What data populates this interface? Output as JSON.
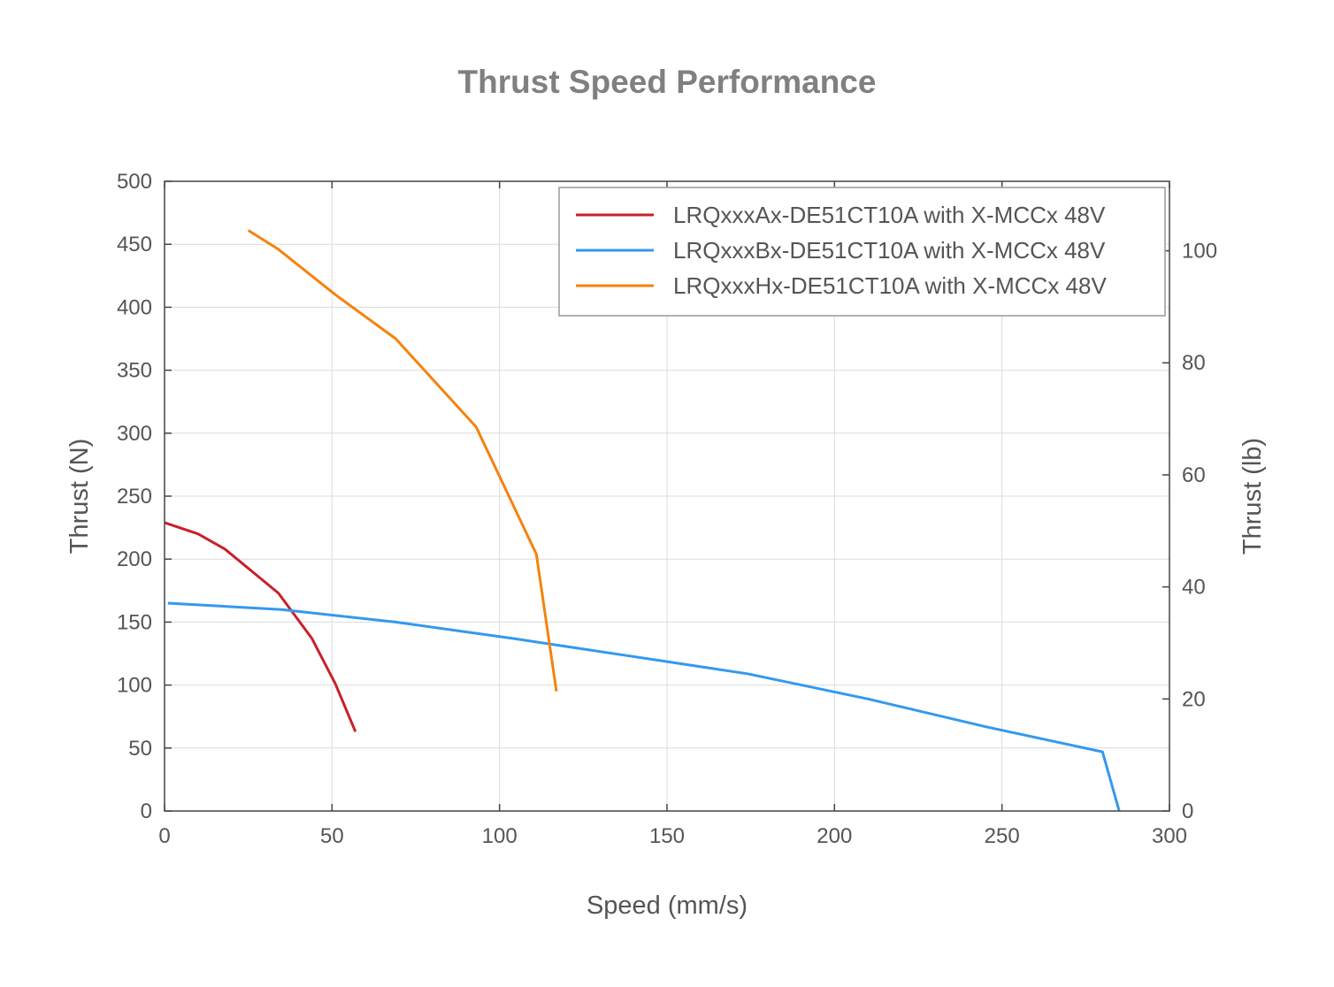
{
  "chart_data": {
    "type": "line",
    "title": "Thrust Speed Performance",
    "xlabel": "Speed (mm/s)",
    "ylabel": "Thrust (N)",
    "y2label": "Thrust (lb)",
    "xlim": [
      0,
      300
    ],
    "ylim": [
      0,
      500
    ],
    "y2lim": [
      0,
      112.4
    ],
    "x_ticks": [
      "0",
      "50",
      "100",
      "150",
      "200",
      "250",
      "300"
    ],
    "y_ticks": [
      "0",
      "50",
      "100",
      "150",
      "200",
      "250",
      "300",
      "350",
      "400",
      "450",
      "500"
    ],
    "y2_ticks": [
      "0",
      "20",
      "40",
      "60",
      "80",
      "100"
    ],
    "grid": true,
    "legend_position": "top-right",
    "series": [
      {
        "name": "LRQxxxAx-DE51CT10A with X-MCCx 48V",
        "color": "#c8202a",
        "x": [
          0,
          10,
          18,
          34,
          44,
          51,
          57
        ],
        "y": [
          229,
          220,
          208,
          173,
          137,
          101,
          63
        ]
      },
      {
        "name": "LRQxxxBx-DE51CT10A with X-MCCx 48V",
        "color": "#3399ee",
        "x": [
          1,
          35,
          69,
          104,
          139,
          174,
          210,
          245,
          280,
          285
        ],
        "y": [
          165,
          160,
          150,
          137,
          123,
          109,
          89,
          67,
          47,
          0
        ]
      },
      {
        "name": "LRQxxxHx-DE51CT10A with X-MCCx 48V",
        "color": "#f5820e",
        "x": [
          25,
          34,
          51,
          69,
          93,
          111,
          117
        ],
        "y": [
          461,
          446,
          410,
          375,
          305,
          204,
          95
        ]
      }
    ]
  }
}
